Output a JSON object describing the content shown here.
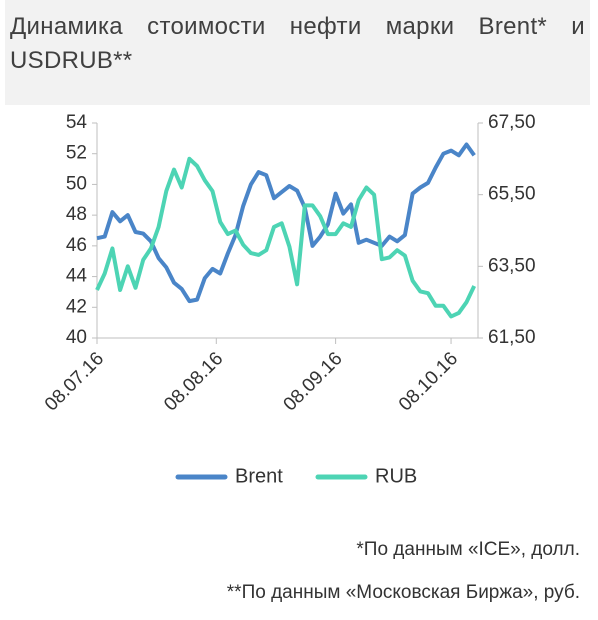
{
  "chart_data": {
    "type": "line",
    "title": "Динамика стоимости нефти марки Brent* и USDRUB**",
    "x": [
      "2016-07-08",
      "2016-07-10",
      "2016-07-12",
      "2016-07-14",
      "2016-07-16",
      "2016-07-18",
      "2016-07-20",
      "2016-07-22",
      "2016-07-24",
      "2016-07-26",
      "2016-07-28",
      "2016-07-30",
      "2016-08-01",
      "2016-08-03",
      "2016-08-05",
      "2016-08-07",
      "2016-08-09",
      "2016-08-11",
      "2016-08-13",
      "2016-08-15",
      "2016-08-17",
      "2016-08-19",
      "2016-08-21",
      "2016-08-23",
      "2016-08-25",
      "2016-08-27",
      "2016-08-29",
      "2016-08-31",
      "2016-09-02",
      "2016-09-04",
      "2016-09-06",
      "2016-09-08",
      "2016-09-10",
      "2016-09-12",
      "2016-09-14",
      "2016-09-16",
      "2016-09-18",
      "2016-09-20",
      "2016-09-22",
      "2016-09-24",
      "2016-09-26",
      "2016-09-28",
      "2016-09-30",
      "2016-10-02",
      "2016-10-04",
      "2016-10-06",
      "2016-10-08",
      "2016-10-10",
      "2016-10-12",
      "2016-10-14"
    ],
    "series": [
      {
        "name": "Brent",
        "color": "#4a85c8",
        "values": [
          46.5,
          46.6,
          48.2,
          47.6,
          48.0,
          46.9,
          46.8,
          46.3,
          45.2,
          44.6,
          43.6,
          43.2,
          42.4,
          42.5,
          43.9,
          44.5,
          44.2,
          45.5,
          46.7,
          48.6,
          50.0,
          50.8,
          50.6,
          49.1,
          49.5,
          49.9,
          49.6,
          48.5,
          46.0,
          46.6,
          47.4,
          49.4,
          48.1,
          48.7,
          46.2,
          46.4,
          46.2,
          46.0,
          46.6,
          46.3,
          46.7,
          49.4,
          49.8,
          50.1,
          51.1,
          52.0,
          52.2,
          51.9,
          52.6,
          51.9
        ]
      },
      {
        "name": "RUB",
        "color": "#4dd4b4",
        "axis": "y2",
        "values": [
          62.84,
          63.3,
          64.0,
          62.84,
          63.5,
          62.9,
          63.68,
          64.0,
          64.6,
          65.6,
          66.2,
          65.7,
          66.5,
          66.3,
          65.9,
          65.6,
          64.74,
          64.4,
          64.5,
          64.1,
          63.87,
          63.82,
          63.95,
          64.6,
          64.7,
          64.05,
          63.0,
          65.2,
          65.2,
          64.9,
          64.4,
          64.4,
          64.7,
          64.6,
          65.35,
          65.7,
          65.5,
          63.7,
          63.75,
          63.95,
          63.8,
          63.1,
          62.8,
          62.75,
          62.4,
          62.4,
          62.1,
          62.2,
          62.5,
          62.95
        ]
      }
    ],
    "xlim": [
      "2016-07-08",
      "2016-10-15"
    ],
    "xticks": [
      {
        "value": "2016-07-08",
        "label": "08.07.16"
      },
      {
        "value": "2016-08-08",
        "label": "08.08.16"
      },
      {
        "value": "2016-09-08",
        "label": "08.09.16"
      },
      {
        "value": "2016-10-08",
        "label": "08.10.16"
      }
    ],
    "ylim": [
      40,
      54
    ],
    "yticks": [
      40,
      42,
      44,
      46,
      48,
      50,
      52,
      54
    ],
    "y2lim": [
      61.5,
      67.5
    ],
    "y2ticks": [
      {
        "value": 61.5,
        "label": "61,50"
      },
      {
        "value": 63.5,
        "label": "63,50"
      },
      {
        "value": 65.5,
        "label": "65,50"
      },
      {
        "value": 67.5,
        "label": "67,50"
      }
    ],
    "legend": "bottom",
    "notes": [
      "*По данным «ICE», долл.",
      "**По данным «Московская Биржа», руб."
    ]
  }
}
